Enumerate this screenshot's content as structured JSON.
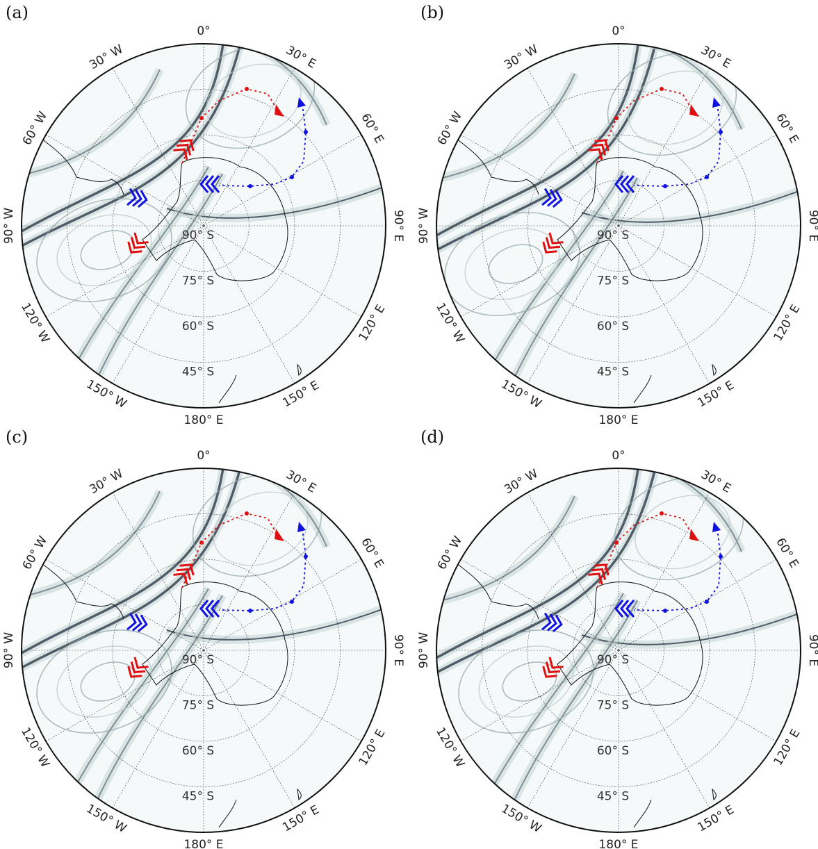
{
  "panels": [
    {
      "label": "(a)"
    },
    {
      "label": "(b)"
    },
    {
      "label": "(c)"
    },
    {
      "label": "(d)"
    }
  ],
  "longitude_labels": [
    "0°",
    "30° E",
    "60° E",
    "90° E",
    "120° E",
    "150° E",
    "180° E",
    "150° W",
    "120° W",
    "90° W",
    "60° W",
    "30° W"
  ],
  "latitude_labels": [
    "90° S",
    "75° S",
    "60° S",
    "45° S"
  ],
  "colors": {
    "red_trajectory": "#e01010",
    "blue_trajectory": "#1010e0",
    "ridge_dark": "#3a4452",
    "ridge_light": "#c7d6d6",
    "coast": "#111111",
    "grid": "#444444"
  },
  "icons": [
    "red-chevron-marker-icon",
    "blue-chevron-marker-icon",
    "arrowhead-icon"
  ]
}
